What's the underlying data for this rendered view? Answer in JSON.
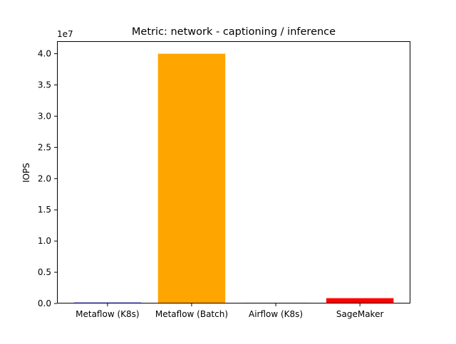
{
  "chart_data": {
    "type": "bar",
    "title": "Metric: network - captioning / inference",
    "xlabel": "",
    "ylabel": "IOPS",
    "offset_label": "1e7",
    "categories": [
      "Metaflow (K8s)",
      "Metaflow (Batch)",
      "Airflow (K8s)",
      "SageMaker"
    ],
    "values": [
      150000,
      40000000,
      120000,
      850000
    ],
    "bar_colors": [
      "#0000ff",
      "#ffa500",
      "#008000",
      "#ff0000"
    ],
    "ylim": [
      0,
      42000000
    ],
    "yticks": [
      0,
      5000000,
      10000000,
      15000000,
      20000000,
      25000000,
      30000000,
      35000000,
      40000000
    ],
    "ytick_labels": [
      "0.0",
      "0.5",
      "1.0",
      "1.5",
      "2.0",
      "2.5",
      "3.0",
      "3.5",
      "4.0"
    ],
    "grid": false,
    "legend": "none"
  }
}
